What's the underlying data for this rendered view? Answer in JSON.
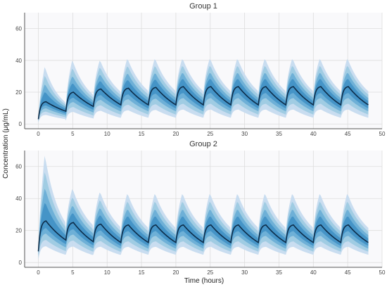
{
  "chart_data": {
    "type": "area",
    "ylabel": "Concentration (μg/mL)",
    "xlabel": "Time (hours)",
    "xlim": [
      -2,
      50
    ],
    "ylim": [
      -3,
      70
    ],
    "xticks": [
      0,
      5,
      10,
      15,
      20,
      25,
      30,
      35,
      40,
      45,
      50
    ],
    "yticks": [
      0,
      20,
      40,
      60
    ],
    "grid": true,
    "band_colors": [
      "#c6dbef",
      "#9ecae1",
      "#6baed6",
      "#4292c6"
    ],
    "median_color": "#0d2d4a",
    "dose_times": [
      0,
      4,
      8,
      12,
      16,
      20,
      24,
      28,
      32,
      36,
      40,
      44
    ],
    "t_end": 48,
    "panels": [
      {
        "title": "Group 1",
        "median_peaks": [
          14,
          20,
          22,
          22.5,
          23,
          23.5,
          23.5,
          23.5,
          23.5,
          23.5,
          23.5,
          23.5
        ],
        "median_troughs": [
          3,
          8,
          11,
          12,
          12,
          12,
          12,
          12,
          12,
          12,
          12,
          12
        ],
        "outer_upper_peaks": [
          36,
          40,
          40,
          41,
          41,
          41,
          41,
          41,
          41,
          41,
          41,
          41
        ],
        "outer_lower_troughs": [
          0.5,
          1.5,
          2.5,
          3,
          3,
          3,
          3,
          3,
          3,
          3,
          3,
          3
        ]
      },
      {
        "title": "Group 2",
        "median_peaks": [
          26,
          25,
          24,
          23.5,
          23.5,
          23.5,
          23.5,
          23.5,
          23.5,
          23.5,
          23.5,
          23.5
        ],
        "median_troughs": [
          7,
          14,
          13,
          12.5,
          12.5,
          12.5,
          12.5,
          12.5,
          12.5,
          12.5,
          12.5,
          12.5
        ],
        "outer_upper_peaks": [
          67,
          46,
          44,
          43,
          43,
          43,
          43,
          43,
          43,
          43,
          43,
          43
        ],
        "outer_lower_troughs": [
          1,
          4,
          4,
          4,
          4,
          4,
          4,
          4,
          4,
          4,
          4,
          4
        ]
      }
    ]
  }
}
